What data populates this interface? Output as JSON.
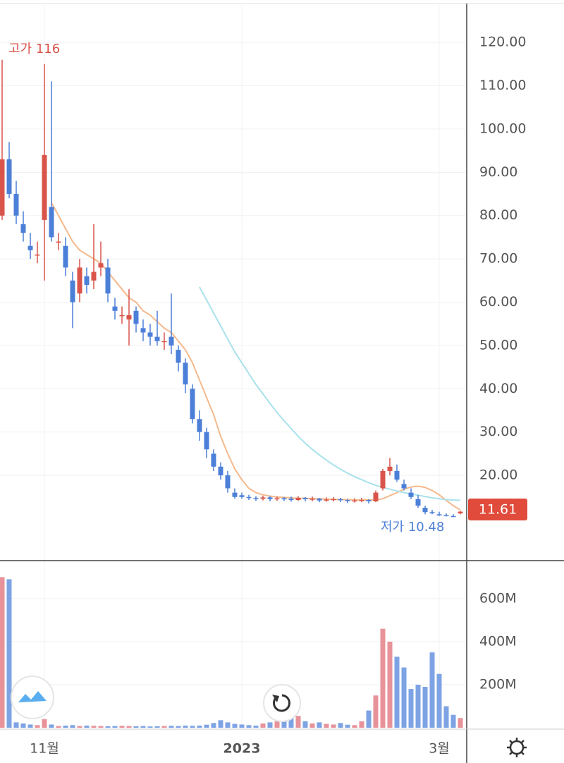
{
  "chart_data": [
    {
      "type": "candlestick",
      "high_label": "고가 116",
      "low_label": "저가 10.48",
      "categories": [
        null,
        null,
        null,
        null,
        null,
        null,
        "11월",
        null,
        null,
        null,
        null,
        null,
        null,
        null,
        null,
        null,
        null,
        null,
        null,
        null,
        null,
        null,
        null,
        null,
        null,
        null,
        null,
        null,
        null,
        null,
        null,
        null,
        null,
        null,
        "2023",
        null,
        null,
        null,
        null,
        null,
        null,
        null,
        null,
        null,
        null,
        null,
        null,
        null,
        null,
        null,
        null,
        null,
        null,
        null,
        null,
        null,
        null,
        null,
        null,
        null,
        null,
        null,
        "3월",
        null,
        null,
        null
      ],
      "open": [
        80,
        93,
        85,
        78,
        73,
        71,
        79,
        82,
        74,
        73,
        65,
        62,
        66,
        65,
        68,
        68,
        59,
        57,
        56,
        58,
        54,
        53,
        52,
        51,
        52,
        49,
        46,
        40,
        33,
        30,
        25,
        22,
        20,
        16,
        15.4,
        15,
        14.8,
        14.6,
        14.9,
        14.5,
        14.7,
        14.6,
        14.3,
        14.8,
        14.5,
        14.6,
        14.2,
        14.4,
        14.5,
        14.3,
        14.1,
        14.2,
        14.3,
        14,
        17,
        21,
        21,
        18,
        16,
        14.5,
        12.5,
        11.5,
        11,
        10.8,
        10.6,
        11.2
      ],
      "high": [
        116,
        97,
        88,
        81,
        76,
        74,
        115,
        111,
        76,
        75,
        67,
        70,
        68,
        78,
        74,
        70,
        61,
        59,
        63,
        59,
        56,
        55,
        58,
        53,
        62,
        50,
        47,
        41,
        35,
        31,
        26,
        23,
        21,
        17,
        16,
        15.5,
        15.2,
        15.3,
        15.2,
        15.1,
        15,
        15.1,
        15.2,
        15,
        15.1,
        14.8,
        14.9,
        15,
        14.8,
        14.6,
        14.7,
        14.8,
        14.5,
        16.5,
        21.5,
        24,
        22.5,
        19,
        17,
        15.5,
        13,
        12,
        11.6,
        11.2,
        11,
        11.8
      ],
      "low": [
        79,
        84,
        78,
        74,
        70,
        69,
        65,
        74,
        72,
        66,
        54,
        60,
        62,
        63,
        66,
        60,
        56,
        55,
        50,
        53,
        51,
        50,
        50,
        49,
        48,
        44,
        39,
        32,
        28,
        24,
        21,
        19,
        16,
        14.6,
        14.6,
        14.3,
        14.1,
        14.2,
        14,
        14.1,
        14.1,
        13.9,
        14.1,
        14,
        14,
        13.8,
        13.9,
        14,
        13.8,
        13.6,
        13.7,
        13.8,
        13.5,
        13.8,
        16.5,
        20,
        18.5,
        16.5,
        14.5,
        12.5,
        11,
        11,
        10.6,
        10.5,
        10.48,
        11
      ],
      "close": [
        93,
        85,
        80,
        76,
        72,
        71,
        94,
        75,
        74,
        68,
        60,
        68,
        64,
        67,
        69,
        62,
        58,
        57,
        57,
        55,
        53,
        52,
        51,
        51,
        50,
        46,
        41,
        33,
        30,
        26,
        22,
        20,
        17,
        15,
        15,
        14.8,
        14.6,
        14.9,
        14.5,
        14.7,
        14.6,
        14.3,
        14.8,
        14.5,
        14.6,
        14.2,
        14.4,
        14.5,
        14.3,
        14.1,
        14.2,
        14.3,
        14,
        16,
        21,
        22,
        19,
        17,
        15,
        13,
        11.5,
        11.3,
        10.8,
        10.7,
        10.5,
        11.61
      ],
      "up_color": "#d9544a",
      "down_color": "#4c7fd8",
      "lines": [
        {
          "color": "#f5b98c",
          "values": [
            null,
            null,
            null,
            null,
            null,
            null,
            null,
            83,
            80,
            77,
            74,
            72,
            71,
            70,
            69,
            67,
            65,
            63,
            61,
            60,
            58,
            57,
            55.5,
            54,
            53,
            51,
            49,
            46,
            42,
            38,
            34,
            29,
            25,
            21.5,
            19,
            17,
            16,
            15.5,
            15.2,
            15,
            14.9,
            14.8,
            14.7,
            14.7,
            14.6,
            14.6,
            14.5,
            14.5,
            14.4,
            14.4,
            14.3,
            14.3,
            14.3,
            14.3,
            14.6,
            15.3,
            16,
            16.8,
            17.3,
            17.5,
            17.2,
            16.5,
            15.5,
            14.2,
            13,
            12
          ]
        },
        {
          "color": "#a8e2ec",
          "values": [
            null,
            null,
            null,
            null,
            null,
            null,
            null,
            null,
            null,
            null,
            null,
            null,
            null,
            null,
            null,
            null,
            null,
            null,
            null,
            null,
            null,
            null,
            null,
            null,
            null,
            null,
            null,
            null,
            63.5,
            60.5,
            57.5,
            54.5,
            51.5,
            48.5,
            46,
            43.5,
            41,
            38.8,
            36.6,
            34.5,
            32.6,
            30.8,
            29,
            27.4,
            26,
            24.7,
            23.5,
            22.4,
            21.4,
            20.5,
            19.7,
            19,
            18.3,
            17.7,
            17.2,
            16.8,
            16.4,
            16,
            15.7,
            15.4,
            15.1,
            14.8,
            14.6,
            14.4,
            14.3,
            14.2
          ]
        }
      ],
      "ylim": [
        0.3,
        128.5
      ],
      "yticks": [
        {
          "value": 20,
          "label": "20.00"
        },
        {
          "value": 30,
          "label": "30.00"
        },
        {
          "value": 40,
          "label": "40.00"
        },
        {
          "value": 50,
          "label": "50.00"
        },
        {
          "value": 60,
          "label": "60.00"
        },
        {
          "value": 70,
          "label": "70.00"
        },
        {
          "value": 80,
          "label": "80.00"
        },
        {
          "value": 90,
          "label": "90.00"
        },
        {
          "value": 100,
          "label": "100.00"
        },
        {
          "value": 110,
          "label": "110.00"
        },
        {
          "value": 120,
          "label": "120.00"
        }
      ],
      "grid": true
    },
    {
      "type": "bar",
      "values": [
        700,
        690,
        25,
        20,
        15,
        12,
        40,
        15,
        8,
        10,
        12,
        8,
        10,
        9,
        8,
        7,
        8,
        9,
        8,
        7,
        8,
        6,
        7,
        8,
        9,
        8,
        10,
        9,
        10,
        14,
        22,
        35,
        25,
        18,
        15,
        12,
        10,
        20,
        25,
        30,
        40,
        45,
        55,
        30,
        20,
        25,
        18,
        15,
        22,
        14,
        12,
        30,
        80,
        150,
        460,
        400,
        330,
        280,
        180,
        200,
        190,
        350,
        250,
        100,
        60,
        45
      ],
      "up_color": "#e8929a",
      "down_color": "#7ea3e4",
      "ylim": [
        0,
        770
      ],
      "yticks": [
        {
          "value": 200,
          "label": "200M"
        },
        {
          "value": 400,
          "label": "400M"
        },
        {
          "value": 600,
          "label": "600M"
        }
      ],
      "grid": true
    }
  ]
}
